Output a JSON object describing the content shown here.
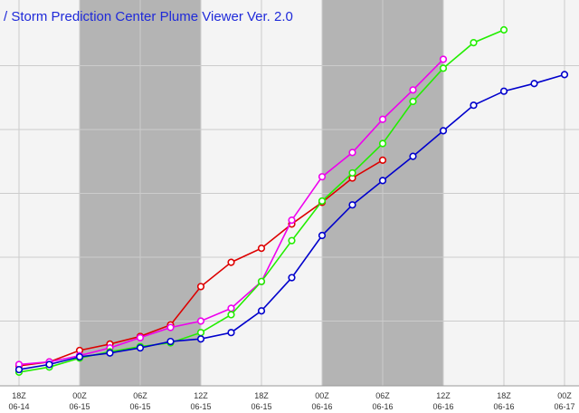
{
  "window": {
    "title": "/ Storm Prediction Center Plume Viewer Ver. 2.0"
  },
  "colors": {
    "background": "#ffffff",
    "plot_background": "#f4f4f4",
    "shade_band": "#b4b4b4",
    "grid": "#cccccc",
    "title_text": "#1f2ad9"
  },
  "chart_data": {
    "type": "line",
    "title": "",
    "xlabel": "",
    "ylabel": "",
    "x_axis": {
      "ticks": [
        {
          "hour": "18Z",
          "date": "06-14"
        },
        {
          "hour": "00Z",
          "date": "06-15"
        },
        {
          "hour": "06Z",
          "date": "06-15"
        },
        {
          "hour": "12Z",
          "date": "06-15"
        },
        {
          "hour": "18Z",
          "date": "06-15"
        },
        {
          "hour": "00Z",
          "date": "06-16"
        },
        {
          "hour": "06Z",
          "date": "06-16"
        },
        {
          "hour": "12Z",
          "date": "06-16"
        },
        {
          "hour": "18Z",
          "date": "06-16"
        },
        {
          "hour": "00Z",
          "date": "06-17"
        }
      ],
      "forecast_hours_per_tick": 6,
      "shaded_nighttime_ranges": [
        [
          1,
          3
        ],
        [
          5,
          7
        ]
      ]
    },
    "y_range": [
      0,
      29
    ],
    "y_gridlines": [
      5,
      10,
      15,
      20,
      25
    ],
    "grid": true,
    "legend": "none",
    "series": [
      {
        "color": "#dd0000",
        "x": [
          0,
          0.5,
          1,
          1.5,
          2,
          2.5,
          3,
          3.5,
          4,
          4.5,
          5,
          5.5,
          6
        ],
        "y": [
          1.5,
          1.8,
          2.7,
          3.2,
          3.8,
          4.7,
          7.7,
          9.6,
          10.7,
          12.6,
          14.3,
          16.2,
          17.6
        ]
      },
      {
        "color": "#ee00ee",
        "x": [
          0,
          0.5,
          1,
          1.5,
          2,
          2.5,
          3,
          3.5,
          4,
          4.5,
          5,
          5.5,
          6,
          6.5,
          7
        ],
        "y": [
          1.6,
          1.8,
          2.3,
          2.9,
          3.7,
          4.5,
          5.0,
          6.0,
          8.1,
          12.9,
          16.3,
          18.2,
          20.8,
          23.1,
          25.5
        ]
      },
      {
        "color": "#22ee00",
        "x": [
          0,
          0.5,
          1,
          1.5,
          2,
          2.5,
          3,
          3.5,
          4,
          4.5,
          5,
          5.5,
          6,
          6.5,
          7,
          7.5,
          8
        ],
        "y": [
          1.0,
          1.4,
          2.1,
          2.6,
          3.0,
          3.3,
          4.1,
          5.5,
          8.1,
          11.3,
          14.4,
          16.6,
          18.9,
          22.2,
          24.8,
          26.8,
          27.8
        ]
      },
      {
        "color": "#0000cc",
        "x": [
          0,
          0.5,
          1,
          1.5,
          2,
          2.5,
          3,
          3.5,
          4,
          4.5,
          5,
          5.5,
          6,
          6.5,
          7,
          7.5,
          8,
          8.5,
          9
        ],
        "y": [
          1.2,
          1.6,
          2.2,
          2.5,
          2.9,
          3.4,
          3.6,
          4.1,
          5.8,
          8.4,
          11.7,
          14.1,
          16.0,
          17.9,
          19.9,
          21.9,
          23.0,
          23.6,
          24.3
        ]
      }
    ]
  }
}
